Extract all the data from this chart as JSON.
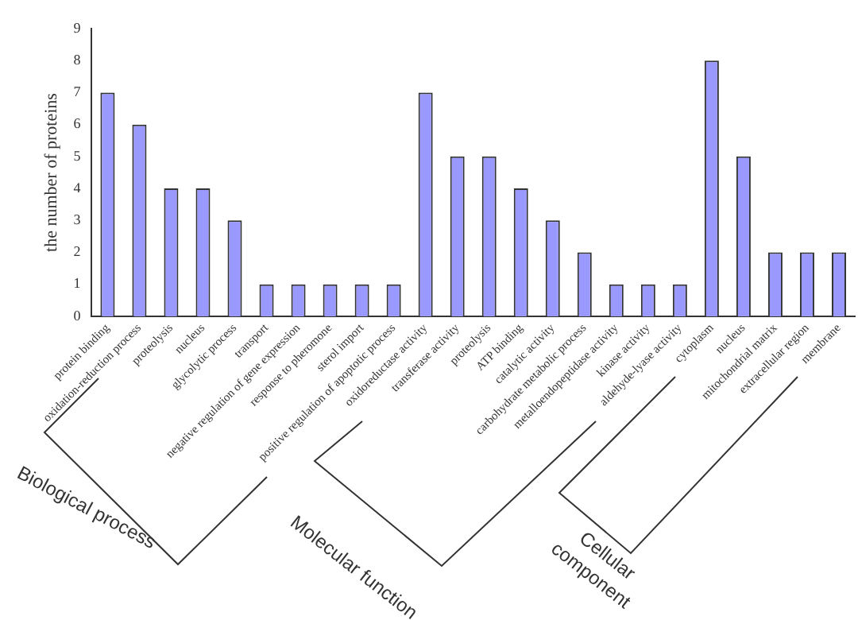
{
  "chart_data": {
    "type": "bar",
    "ylabel": "the number of proteins",
    "categories": [
      "protein binding",
      "oxidation-reduction process",
      "proteolysis",
      "nucleus",
      "glycolytic process",
      "transport",
      "negative regulation of gene expression",
      "response to pheromone",
      "sterol import",
      "positive regulation of apoptotic process",
      "oxidoreductase activity",
      "transferase activity",
      "proteolysis",
      "ATP binding",
      "catalytic activity",
      "carbohydrate metabolic process",
      "metalloendopeptidase activity",
      "kinase activity",
      "aldehyde-lyase activity",
      "cytoplasm",
      "nucleus",
      "mitochondrial matrix",
      "extracellular region",
      "membrane"
    ],
    "values": [
      7,
      6,
      4,
      4,
      3,
      1,
      1,
      1,
      1,
      1,
      7,
      5,
      5,
      4,
      3,
      2,
      1,
      1,
      1,
      8,
      5,
      2,
      2,
      2
    ],
    "color": "#9999ff",
    "ylim": [
      0,
      9
    ],
    "yticks": [
      0,
      1,
      2,
      3,
      4,
      5,
      6,
      7,
      8,
      9
    ],
    "grid": false,
    "annotations": [
      "Biological process",
      "Molecular function",
      "Cellular component"
    ]
  }
}
